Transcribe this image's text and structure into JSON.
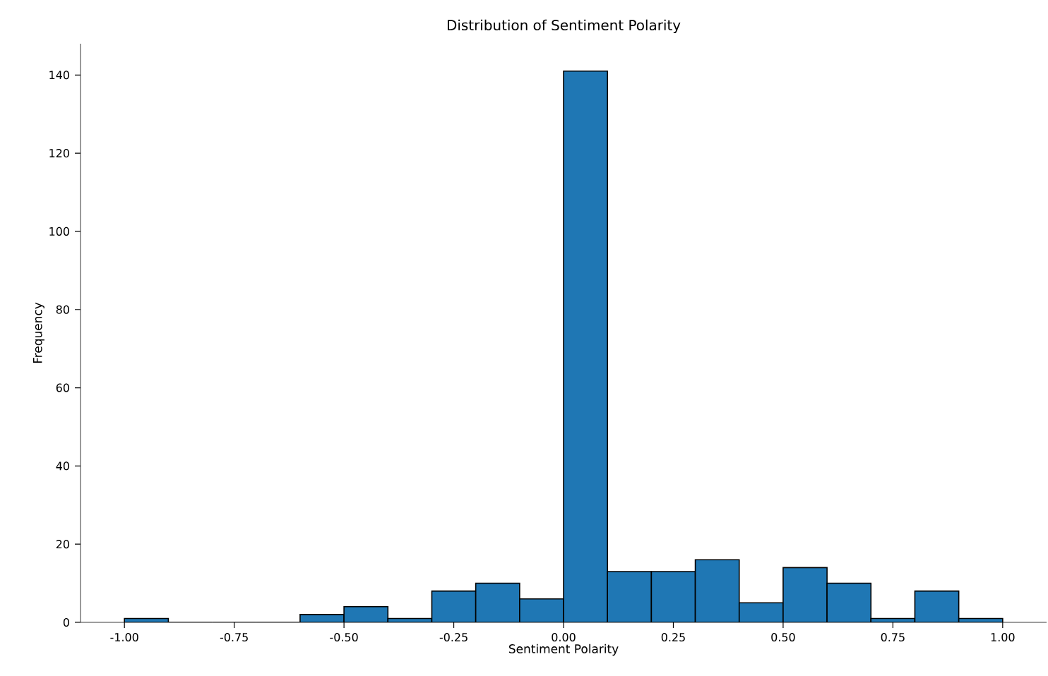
{
  "chart_data": {
    "type": "histogram",
    "title": "Distribution of Sentiment Polarity",
    "xlabel": "Sentiment Polarity",
    "ylabel": "Frequency",
    "bins": [
      -1.0,
      -0.9,
      -0.8,
      -0.7,
      -0.6,
      -0.5,
      -0.4,
      -0.3,
      -0.2,
      -0.1,
      0.0,
      0.1,
      0.2,
      0.3,
      0.4,
      0.5,
      0.6,
      0.7,
      0.8,
      0.9,
      1.0
    ],
    "values": [
      1,
      0,
      0,
      0,
      2,
      4,
      1,
      8,
      10,
      6,
      141,
      13,
      13,
      16,
      5,
      14,
      10,
      1,
      8,
      1
    ],
    "color": "#1f77b4",
    "xlim": [
      -1.1,
      1.1
    ],
    "ylim": [
      0,
      148
    ],
    "xticks": [
      {
        "value": -1.0,
        "label": "-1.00"
      },
      {
        "value": -0.75,
        "label": "-0.75"
      },
      {
        "value": -0.5,
        "label": "-0.50"
      },
      {
        "value": -0.25,
        "label": "-0.25"
      },
      {
        "value": 0.0,
        "label": "0.00"
      },
      {
        "value": 0.25,
        "label": "0.25"
      },
      {
        "value": 0.5,
        "label": "0.50"
      },
      {
        "value": 0.75,
        "label": "0.75"
      },
      {
        "value": 1.0,
        "label": "1.00"
      }
    ],
    "yticks": [
      0,
      20,
      40,
      60,
      80,
      100,
      120,
      140
    ],
    "grid": false
  }
}
